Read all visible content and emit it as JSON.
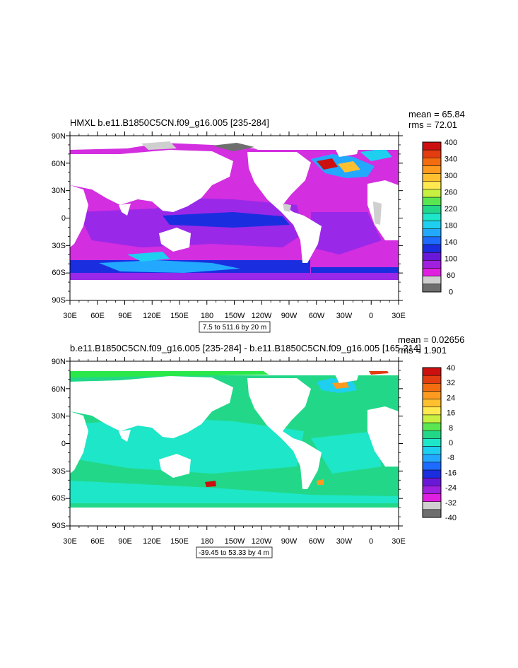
{
  "panels": [
    {
      "title": "HMXL b.e11.B1850C5CN.f09_g16.005 [235-284]",
      "mean": "mean = 65.84",
      "rms": "rms = 72.01",
      "range_label": "7.5 to 511.6 by 20 m",
      "colorbar": {
        "labels": [
          "400",
          "340",
          "300",
          "260",
          "220",
          "180",
          "140",
          "100",
          "60",
          "0"
        ],
        "colors": [
          "#cc1010",
          "#e23c10",
          "#f36c10",
          "#ff9a20",
          "#ffc030",
          "#ffe850",
          "#c8f040",
          "#5ae650",
          "#22d888",
          "#1ee6c8",
          "#1ecff0",
          "#23a8ff",
          "#1e6bff",
          "#1a2ee0",
          "#6a18d8",
          "#a020e0",
          "#e020e0",
          "#cfcfcf",
          "#6e6e6e"
        ]
      }
    },
    {
      "title": "b.e11.B1850C5CN.f09_g16.005 [235-284] - b.e11.B1850C5CN.f09_g16.005 [165-214]",
      "mean": "mean = 0.02656",
      "rms": "rms = 1.901",
      "range_label": "-39.45 to 53.33 by 4 m",
      "colorbar": {
        "labels": [
          "40",
          "32",
          "24",
          "16",
          "8",
          "0",
          "-8",
          "-16",
          "-24",
          "-32",
          "-40"
        ],
        "colors": [
          "#cc1010",
          "#e23c10",
          "#f36c10",
          "#ff9a20",
          "#ffc030",
          "#ffe850",
          "#c8f040",
          "#5ae650",
          "#22d888",
          "#1ee6c8",
          "#1ecff0",
          "#23a8ff",
          "#1e6bff",
          "#1a2ee0",
          "#6a18d8",
          "#a020e0",
          "#e020e0",
          "#cfcfcf",
          "#6e6e6e"
        ]
      }
    }
  ],
  "lat_labels": [
    "90N",
    "60N",
    "30N",
    "0",
    "30S",
    "60S",
    "90S"
  ],
  "lon_labels": [
    "30E",
    "60E",
    "90E",
    "120E",
    "150E",
    "180",
    "150W",
    "120W",
    "90W",
    "60W",
    "30W",
    "0",
    "30E"
  ],
  "palette": {
    "land": "#ffffff",
    "ice": "#cfcfcf",
    "dark_ice": "#6e6e6e",
    "panel1_base": "#d32ee0",
    "panel1_deep": "#9a28e8",
    "panel1_blue": "#1a2ee0",
    "panel1_cyan": "#1ecff0",
    "panel2_base": "#22d888",
    "panel2_green": "#2ae84a",
    "panel2_cyan": "#1ee6c8"
  }
}
